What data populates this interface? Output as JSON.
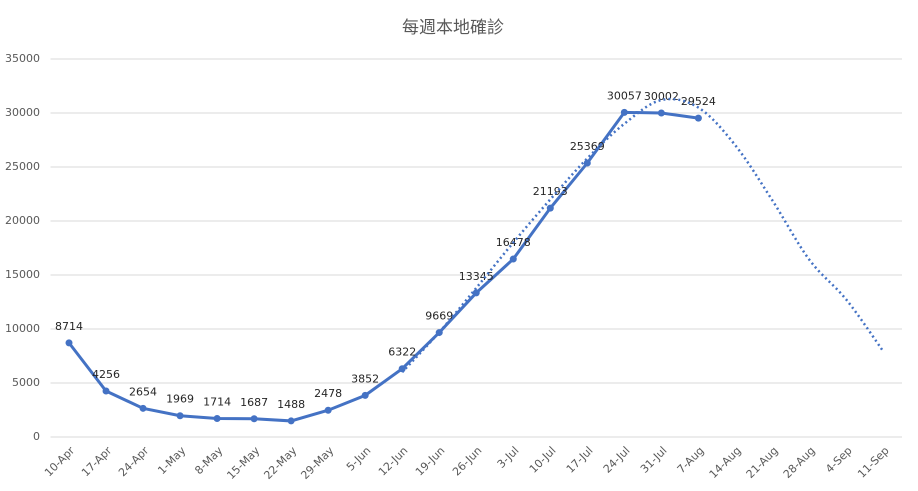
{
  "chart_data": {
    "type": "line",
    "title": "每週本地確診",
    "categories": [
      "10-Apr",
      "17-Apr",
      "24-Apr",
      "1-May",
      "8-May",
      "15-May",
      "22-May",
      "29-May",
      "5-Jun",
      "12-Jun",
      "19-Jun",
      "26-Jun",
      "3-Jul",
      "10-Jul",
      "17-Jul",
      "24-Jul",
      "31-Jul",
      "7-Aug",
      "14-Aug",
      "21-Aug",
      "28-Aug",
      "4-Sep",
      "11-Sep"
    ],
    "series": [
      {
        "color": "#4472c4",
        "style": "solid",
        "data_labels": true,
        "values": [
          8714,
          4256,
          2654,
          1969,
          1714,
          1687,
          1488,
          2478,
          3852,
          6322,
          9669,
          13345,
          16478,
          21193,
          25369,
          30057,
          30002,
          29524,
          null,
          null,
          null,
          null,
          null
        ]
      },
      {
        "color": "#4472c4",
        "style": "dotted",
        "data_labels": false,
        "values": [
          null,
          null,
          null,
          null,
          null,
          null,
          null,
          null,
          null,
          6000,
          9700,
          13800,
          18000,
          22000,
          25800,
          29000,
          31200,
          30500,
          27000,
          21900,
          16400,
          12700,
          7900
        ]
      }
    ],
    "ylim": [
      0,
      35000
    ],
    "yticks": [
      0,
      5000,
      10000,
      15000,
      20000,
      25000,
      30000,
      35000
    ],
    "grid": true
  }
}
